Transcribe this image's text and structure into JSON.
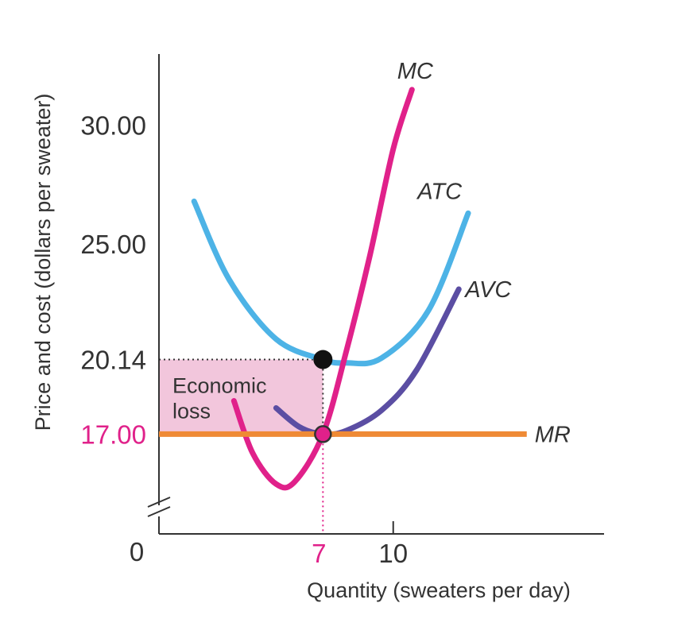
{
  "chart_data": {
    "type": "line",
    "title": "",
    "xlabel": "Quantity (sweaters per day)",
    "ylabel": "Price and cost (dollars per sweater)",
    "axis_break": true,
    "origin_label": "0",
    "xlim": [
      0,
      19
    ],
    "ylim": [
      12.8,
      33
    ],
    "x_ticks": [
      {
        "value": 7,
        "label": "7",
        "highlight": true
      },
      {
        "value": 10,
        "label": "10",
        "highlight": false
      }
    ],
    "y_ticks": [
      {
        "value": 30,
        "label": "30.00",
        "highlight": false
      },
      {
        "value": 25,
        "label": "25.00",
        "highlight": false
      },
      {
        "value": 20.14,
        "label": "20.14",
        "highlight": false
      },
      {
        "value": 17,
        "label": "17.00",
        "highlight": true
      }
    ],
    "series": [
      {
        "name": "ATC",
        "color": "#4db3e6",
        "points": [
          [
            1.5,
            26.8
          ],
          [
            3,
            23.5
          ],
          [
            5,
            21.0
          ],
          [
            7,
            20.14
          ],
          [
            8,
            20.0
          ],
          [
            9.5,
            20.2
          ],
          [
            11.5,
            22.2
          ],
          [
            13.2,
            26.3
          ]
        ]
      },
      {
        "name": "AVC",
        "color": "#5b4ea3",
        "points": [
          [
            5.0,
            18.1
          ],
          [
            6,
            17.3
          ],
          [
            7,
            17.0
          ],
          [
            8,
            17.15
          ],
          [
            9.5,
            18.0
          ],
          [
            11,
            19.7
          ],
          [
            12.8,
            23.1
          ]
        ]
      },
      {
        "name": "MC",
        "color": "#e0218a",
        "points": [
          [
            3.2,
            18.4
          ],
          [
            4,
            16.2
          ],
          [
            5,
            14.9
          ],
          [
            5.8,
            15.0
          ],
          [
            7,
            17.0
          ],
          [
            8,
            20.5
          ],
          [
            9,
            24.5
          ],
          [
            10,
            29.0
          ],
          [
            10.8,
            31.5
          ]
        ]
      },
      {
        "name": "MR",
        "color": "#ef8a35",
        "points": [
          [
            0,
            17.0
          ],
          [
            15.7,
            17.0
          ]
        ]
      }
    ],
    "points": [
      {
        "x": 7,
        "y": 20.14,
        "style": "filled",
        "color": "#111111"
      },
      {
        "x": 7,
        "y": 17.0,
        "style": "ring",
        "color": "#e0218a"
      }
    ],
    "guides": [
      {
        "from": [
          0,
          20.14
        ],
        "to": [
          7,
          20.14
        ],
        "color": "#333333"
      },
      {
        "from": [
          7,
          20.14
        ],
        "to": [
          7,
          17.0
        ],
        "color": "#333333"
      },
      {
        "from": [
          7,
          17.0
        ],
        "to": [
          7,
          12.8
        ],
        "color": "#e0218a"
      }
    ],
    "shaded_area": {
      "label_lines": [
        "Economic",
        "loss"
      ],
      "x": [
        0,
        7
      ],
      "y": [
        17.0,
        20.14
      ],
      "color": "#f2c6dc"
    },
    "legend": "curve labels at line ends"
  }
}
